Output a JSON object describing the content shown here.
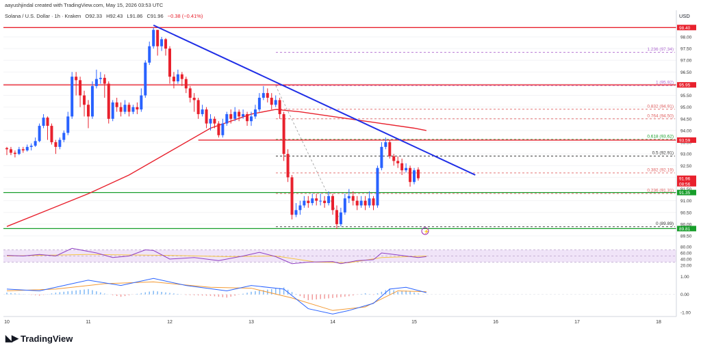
{
  "header": {
    "author_line": "aayushjindal created with TradingView.com, May 15, 2026 03:53 UTC",
    "symbol_line": "Solana / U.S. Dollar · 1h · Kraken",
    "ohlc": {
      "o": "O92.33",
      "h": "H92.43",
      "l": "L91.86",
      "c": "C91.96",
      "chg": "−0.38 (−0.41%)"
    }
  },
  "brand": {
    "name": "TradingView"
  },
  "colors": {
    "up": "#2962ff",
    "down": "#e8212d",
    "ma": "#e8212d",
    "trend": "#1f2ee6",
    "support": "#189e2b",
    "fib_red": "#e06060",
    "fib_purple": "#b06bd1",
    "rsi": "#8e3ec2",
    "rsi_band": "#ead8f5",
    "macd": "#2962ff",
    "signal": "#f39a34"
  },
  "chart_data": {
    "type": "candlestick",
    "currency": "USD",
    "ylim": [
      89.5,
      98.7
    ],
    "y_ticks": [
      "98.00",
      "97.50",
      "97.00",
      "96.50",
      "96.00",
      "95.50",
      "95.00",
      "94.50",
      "94.00",
      "93.50",
      "93.00",
      "92.50",
      "92.00",
      "91.50",
      "91.00",
      "90.50",
      "90.00",
      "89.50"
    ],
    "x_ticks": [
      "10",
      "11",
      "12",
      "13",
      "14",
      "15",
      "16",
      "17",
      "18"
    ],
    "price_labels": [
      {
        "text": "98.40",
        "value": 98.4,
        "color": "#e8212d"
      },
      {
        "text": "95.95",
        "value": 95.95,
        "color": "#e8212d"
      },
      {
        "text": "93.59",
        "value": 93.59,
        "color": "#e8212d"
      },
      {
        "text": "91.96",
        "value": 91.96,
        "color": "#e8212d",
        "extra": "08:56"
      },
      {
        "text": "91.35",
        "value": 91.35,
        "color": "#189e2b"
      },
      {
        "text": "89.81",
        "value": 89.81,
        "color": "#189e2b"
      }
    ],
    "fib_levels": [
      {
        "label": "1.236 (97.34)",
        "value": 97.34,
        "color": "#b06bd1"
      },
      {
        "label": "1 (95.92)",
        "value": 95.92,
        "color": "#b06bd1"
      },
      {
        "label": "0.832 (94.91)",
        "value": 94.91,
        "color": "#e06060"
      },
      {
        "label": "0.764 (94.50)",
        "value": 94.5,
        "color": "#e06060"
      },
      {
        "label": "0.618 (93.62)",
        "value": 93.62,
        "color": "#189e2b"
      },
      {
        "label": "0.5 (92.91)",
        "value": 92.91,
        "color": "#333333"
      },
      {
        "label": "0.382 (92.19)",
        "value": 92.19,
        "color": "#e06060"
      },
      {
        "label": "0.236 (91.31)",
        "value": 91.31,
        "color": "#e06060"
      },
      {
        "label": "0 (89.89)",
        "value": 89.89,
        "color": "#333333"
      }
    ],
    "resistance_levels": [
      98.4,
      95.95,
      93.59
    ],
    "support_levels": [
      91.35,
      89.81
    ],
    "trendline": {
      "from": [
        11.8,
        98.5
      ],
      "to": [
        15.75,
        92.1
      ]
    },
    "candles": [
      [
        10.0,
        93.25,
        93.2,
        93.3,
        92.95
      ],
      [
        10.05,
        93.2,
        93.05,
        93.3,
        92.95
      ],
      [
        10.1,
        93.05,
        93.0,
        93.15,
        92.85
      ],
      [
        10.15,
        93.0,
        93.2,
        93.3,
        92.95
      ],
      [
        10.2,
        93.2,
        93.15,
        93.3,
        93.05
      ],
      [
        10.25,
        93.15,
        93.3,
        93.4,
        93.1
      ],
      [
        10.3,
        93.3,
        93.35,
        93.45,
        93.15
      ],
      [
        10.35,
        93.35,
        93.55,
        93.7,
        93.3
      ],
      [
        10.4,
        93.55,
        94.2,
        94.3,
        93.5
      ],
      [
        10.45,
        94.2,
        94.55,
        94.7,
        94.1
      ],
      [
        10.5,
        94.55,
        94.2,
        94.6,
        93.6
      ],
      [
        10.55,
        94.2,
        93.5,
        94.3,
        93.4
      ],
      [
        10.6,
        93.5,
        93.3,
        93.6,
        93.0
      ],
      [
        10.65,
        93.3,
        93.6,
        93.7,
        93.2
      ],
      [
        10.7,
        93.6,
        93.9,
        94.0,
        93.5
      ],
      [
        10.75,
        93.9,
        94.6,
        94.8,
        93.8
      ],
      [
        10.8,
        94.6,
        96.3,
        96.5,
        94.5
      ],
      [
        10.85,
        96.3,
        96.15,
        96.5,
        95.5
      ],
      [
        10.9,
        96.15,
        95.5,
        96.3,
        95.0
      ],
      [
        10.95,
        95.5,
        95.1,
        95.7,
        94.6
      ],
      [
        11.0,
        95.1,
        94.6,
        95.3,
        94.1
      ],
      [
        11.05,
        94.6,
        95.9,
        96.1,
        94.5
      ],
      [
        11.1,
        95.9,
        96.2,
        96.6,
        95.8
      ],
      [
        11.15,
        96.2,
        96.25,
        96.5,
        96.0
      ],
      [
        11.2,
        96.25,
        96.0,
        96.4,
        95.4
      ],
      [
        11.25,
        96.0,
        94.5,
        96.1,
        94.3
      ],
      [
        11.3,
        94.5,
        95.2,
        95.3,
        94.4
      ],
      [
        11.35,
        95.2,
        95.0,
        95.4,
        94.8
      ],
      [
        11.4,
        95.0,
        94.8,
        95.2,
        94.6
      ],
      [
        11.45,
        94.8,
        95.1,
        95.3,
        94.7
      ],
      [
        11.5,
        95.1,
        94.8,
        95.2,
        94.6
      ],
      [
        11.55,
        94.8,
        95.0,
        95.1,
        94.7
      ],
      [
        11.6,
        95.0,
        94.9,
        95.2,
        94.7
      ],
      [
        11.65,
        94.9,
        95.5,
        95.8,
        94.8
      ],
      [
        11.7,
        95.5,
        96.9,
        97.0,
        95.4
      ],
      [
        11.75,
        96.9,
        97.6,
        97.8,
        96.8
      ],
      [
        11.8,
        97.6,
        98.3,
        98.4,
        97.5
      ],
      [
        11.85,
        98.3,
        97.6,
        98.3,
        97.2
      ],
      [
        11.9,
        97.6,
        97.9,
        98.0,
        97.4
      ],
      [
        11.95,
        97.9,
        97.5,
        97.95,
        97.2
      ],
      [
        12.0,
        97.5,
        96.3,
        97.6,
        96.0
      ],
      [
        12.05,
        96.3,
        96.1,
        96.5,
        95.8
      ],
      [
        12.1,
        96.1,
        96.4,
        96.6,
        96.0
      ],
      [
        12.15,
        96.4,
        96.2,
        96.5,
        95.9
      ],
      [
        12.2,
        96.2,
        95.8,
        96.3,
        95.6
      ],
      [
        12.25,
        95.8,
        95.4,
        95.9,
        95.2
      ],
      [
        12.3,
        95.4,
        95.3,
        95.6,
        94.8
      ],
      [
        12.35,
        95.3,
        94.7,
        95.4,
        94.5
      ],
      [
        12.4,
        94.7,
        94.9,
        95.1,
        94.6
      ],
      [
        12.45,
        94.9,
        94.3,
        95.0,
        94.1
      ],
      [
        12.5,
        94.3,
        94.5,
        94.7,
        94.0
      ],
      [
        12.55,
        94.5,
        94.3,
        94.6,
        94.1
      ],
      [
        12.6,
        94.3,
        93.8,
        94.4,
        93.7
      ],
      [
        12.65,
        93.8,
        94.3,
        94.5,
        93.7
      ],
      [
        12.7,
        94.3,
        94.7,
        94.8,
        94.2
      ],
      [
        12.75,
        94.7,
        94.5,
        94.9,
        94.3
      ],
      [
        12.8,
        94.5,
        94.8,
        95.0,
        94.4
      ],
      [
        12.85,
        94.8,
        94.6,
        94.9,
        94.4
      ],
      [
        12.9,
        94.6,
        94.7,
        94.9,
        94.5
      ],
      [
        12.95,
        94.7,
        94.4,
        94.8,
        94.2
      ],
      [
        13.0,
        94.4,
        94.6,
        94.8,
        94.2
      ],
      [
        13.05,
        94.6,
        94.9,
        95.1,
        94.5
      ],
      [
        13.1,
        94.9,
        95.4,
        95.6,
        94.8
      ],
      [
        13.15,
        95.4,
        95.6,
        95.9,
        95.3
      ],
      [
        13.2,
        95.6,
        95.4,
        95.8,
        95.2
      ],
      [
        13.25,
        95.4,
        95.1,
        95.6,
        94.9
      ],
      [
        13.3,
        95.1,
        95.3,
        95.5,
        95.0
      ],
      [
        13.35,
        95.3,
        94.7,
        95.4,
        94.5
      ],
      [
        13.4,
        94.7,
        93.0,
        94.8,
        92.7
      ],
      [
        13.45,
        93.0,
        92.0,
        93.2,
        91.8
      ],
      [
        13.5,
        92.0,
        90.4,
        92.1,
        90.2
      ],
      [
        13.55,
        90.4,
        90.6,
        90.9,
        90.3
      ],
      [
        13.6,
        90.6,
        90.8,
        91.0,
        90.4
      ],
      [
        13.65,
        90.8,
        91.0,
        91.2,
        90.7
      ],
      [
        13.7,
        91.0,
        90.9,
        91.2,
        90.7
      ],
      [
        13.75,
        90.9,
        91.1,
        91.3,
        90.8
      ],
      [
        13.8,
        91.1,
        91.0,
        91.3,
        90.8
      ],
      [
        13.85,
        91.0,
        91.0,
        91.3,
        90.8
      ],
      [
        13.9,
        91.0,
        90.9,
        91.2,
        90.7
      ],
      [
        13.95,
        90.9,
        91.2,
        91.4,
        90.8
      ],
      [
        14.0,
        91.2,
        90.6,
        91.3,
        90.4
      ],
      [
        14.05,
        90.6,
        90.0,
        90.8,
        89.8
      ],
      [
        14.1,
        90.0,
        90.5,
        90.7,
        89.9
      ],
      [
        14.15,
        90.5,
        91.1,
        91.3,
        90.4
      ],
      [
        14.2,
        91.1,
        91.2,
        91.5,
        90.9
      ],
      [
        14.25,
        91.2,
        91.0,
        91.4,
        90.8
      ],
      [
        14.3,
        91.0,
        90.8,
        91.2,
        90.6
      ],
      [
        14.35,
        90.8,
        91.0,
        91.2,
        90.7
      ],
      [
        14.4,
        91.0,
        90.8,
        91.2,
        90.6
      ],
      [
        14.45,
        90.8,
        91.1,
        91.4,
        90.7
      ],
      [
        14.5,
        91.1,
        90.8,
        91.2,
        90.6
      ],
      [
        14.55,
        90.8,
        92.4,
        92.5,
        90.7
      ],
      [
        14.6,
        92.4,
        93.3,
        93.5,
        92.3
      ],
      [
        14.65,
        93.3,
        93.5,
        93.7,
        93.2
      ],
      [
        14.7,
        93.5,
        92.9,
        93.6,
        92.8
      ],
      [
        14.75,
        92.9,
        92.7,
        93.0,
        92.5
      ],
      [
        14.8,
        92.7,
        92.6,
        92.9,
        92.4
      ],
      [
        14.85,
        92.6,
        92.3,
        92.8,
        92.1
      ],
      [
        14.9,
        92.3,
        92.4,
        92.6,
        92.2
      ],
      [
        14.95,
        92.4,
        91.8,
        92.5,
        91.6
      ],
      [
        15.0,
        91.8,
        92.3,
        92.4,
        91.7
      ],
      [
        15.05,
        92.33,
        91.96,
        92.43,
        91.86
      ]
    ],
    "ma_points": [
      [
        10.0,
        89.9
      ],
      [
        10.5,
        90.6
      ],
      [
        11.0,
        91.3
      ],
      [
        11.5,
        92.1
      ],
      [
        12.0,
        93.1
      ],
      [
        12.5,
        94.1
      ],
      [
        13.0,
        94.7
      ],
      [
        13.3,
        94.9
      ],
      [
        13.6,
        94.8
      ],
      [
        14.0,
        94.6
      ],
      [
        14.5,
        94.35
      ],
      [
        15.0,
        94.1
      ],
      [
        15.15,
        94.0
      ]
    ],
    "rsi": {
      "ylim": [
        0,
        100
      ],
      "ticks": [
        "80.00",
        "60.00",
        "40.00",
        "20.00"
      ],
      "band": [
        30,
        70
      ],
      "values": [
        [
          10.0,
          52
        ],
        [
          10.2,
          50
        ],
        [
          10.4,
          55
        ],
        [
          10.6,
          50
        ],
        [
          10.8,
          75
        ],
        [
          10.9,
          70
        ],
        [
          11.1,
          60
        ],
        [
          11.3,
          45
        ],
        [
          11.5,
          50
        ],
        [
          11.7,
          70
        ],
        [
          11.8,
          68
        ],
        [
          12.0,
          40
        ],
        [
          12.3,
          45
        ],
        [
          12.6,
          35
        ],
        [
          12.9,
          50
        ],
        [
          13.1,
          62
        ],
        [
          13.3,
          48
        ],
        [
          13.5,
          25
        ],
        [
          13.7,
          30
        ],
        [
          14.0,
          32
        ],
        [
          14.1,
          25
        ],
        [
          14.3,
          35
        ],
        [
          14.5,
          38
        ],
        [
          14.6,
          60
        ],
        [
          14.75,
          55
        ],
        [
          14.9,
          50
        ],
        [
          15.05,
          45
        ],
        [
          15.15,
          48
        ]
      ],
      "ma": [
        [
          10.0,
          50
        ],
        [
          11.0,
          55
        ],
        [
          12.0,
          52
        ],
        [
          12.7,
          48
        ],
        [
          13.3,
          50
        ],
        [
          13.8,
          30
        ],
        [
          14.2,
          28
        ],
        [
          14.6,
          45
        ],
        [
          15.15,
          50
        ]
      ]
    },
    "macd": {
      "ylim": [
        -1.2,
        1.1
      ],
      "ticks": [
        "1.00",
        "0.00",
        "-1.00"
      ],
      "line": [
        [
          10.0,
          0.3
        ],
        [
          10.4,
          0.2
        ],
        [
          10.8,
          0.6
        ],
        [
          11.0,
          0.8
        ],
        [
          11.4,
          0.5
        ],
        [
          11.8,
          0.9
        ],
        [
          12.2,
          0.5
        ],
        [
          12.7,
          0.2
        ],
        [
          13.0,
          0.5
        ],
        [
          13.4,
          0.3
        ],
        [
          13.7,
          -0.8
        ],
        [
          14.0,
          -1.1
        ],
        [
          14.2,
          -0.9
        ],
        [
          14.5,
          -0.5
        ],
        [
          14.7,
          0.3
        ],
        [
          14.9,
          0.4
        ],
        [
          15.15,
          0.1
        ]
      ],
      "signal": [
        [
          10.0,
          0.2
        ],
        [
          10.6,
          0.3
        ],
        [
          11.2,
          0.6
        ],
        [
          11.8,
          0.7
        ],
        [
          12.5,
          0.4
        ],
        [
          13.0,
          0.35
        ],
        [
          13.5,
          -0.2
        ],
        [
          14.0,
          -0.9
        ],
        [
          14.4,
          -0.7
        ],
        [
          14.8,
          0.2
        ],
        [
          15.15,
          0.15
        ]
      ]
    }
  }
}
